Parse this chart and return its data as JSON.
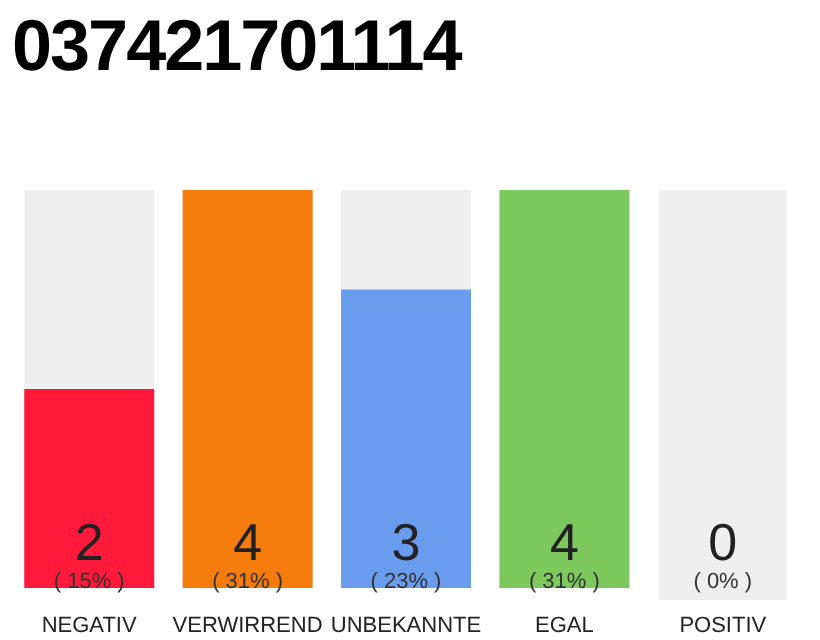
{
  "chart_data": {
    "type": "bar",
    "title": "037421701114",
    "categories": [
      "NEGATIV",
      "VERWIRREND",
      "UNBEKANNTE",
      "EGAL",
      "POSITIV"
    ],
    "values": [
      2,
      4,
      3,
      4,
      0
    ],
    "colors": [
      "#ff1a3c",
      "#f47c0c",
      "#6a9ced",
      "#7dc95e",
      "#9e9e9e"
    ],
    "data_labels": true,
    "annotations": [
      "( 15% )",
      "( 31% )",
      "( 23% )",
      "( 31% )",
      "( 0% )"
    ],
    "grid": false,
    "legend": false
  }
}
